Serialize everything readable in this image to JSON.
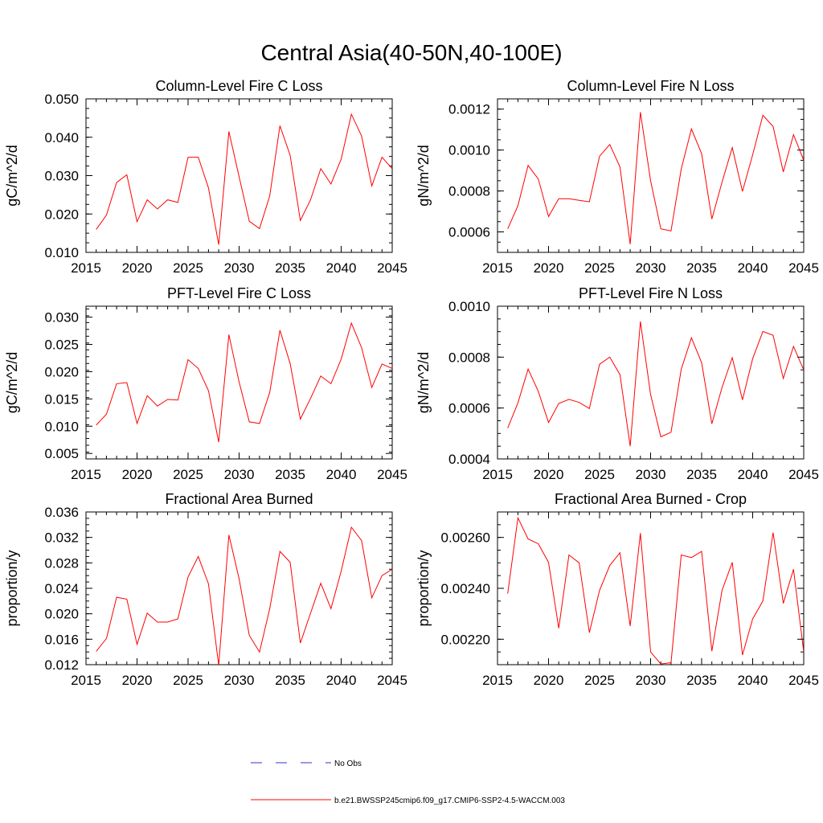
{
  "title": "Central Asia(40-50N,40-100E)",
  "legend": {
    "entries": [
      {
        "label": "No Obs",
        "style": "dashed",
        "color": "#3333cc"
      },
      {
        "label": "b.e21.BWSSP245cmip6.f09_g17.CMIP6-SSP2-4.5-WACCM.003",
        "style": "solid",
        "color": "#ff0000"
      }
    ],
    "placement": "bottom-center"
  },
  "colors": {
    "series": "#ff0000",
    "obs": "#3333cc"
  },
  "chart_data": [
    {
      "type": "line",
      "title": "Column-Level Fire C Loss",
      "xlabel": "",
      "ylabel": "gC/m^2/d",
      "xlim": [
        2015,
        2045
      ],
      "ylim": [
        0.01,
        0.05
      ],
      "xticks": [
        "2015",
        "2020",
        "2025",
        "2030",
        "2035",
        "2040",
        "2045"
      ],
      "yticks": [
        "0.010",
        "0.020",
        "0.030",
        "0.040",
        "0.050"
      ],
      "grid": false,
      "x": [
        2016,
        2017,
        2018,
        2019,
        2020,
        2021,
        2022,
        2023,
        2024,
        2025,
        2026,
        2027,
        2028,
        2029,
        2030,
        2031,
        2032,
        2033,
        2034,
        2035,
        2036,
        2037,
        2038,
        2039,
        2040,
        2041,
        2042,
        2043,
        2044,
        2045
      ],
      "series": [
        {
          "name": "b.e21.BWSSP245cmip6.f09_g17.CMIP6-SSP2-4.5-WACCM.003",
          "values": [
            0.016,
            0.0197,
            0.0282,
            0.0302,
            0.018,
            0.0237,
            0.0213,
            0.0237,
            0.023,
            0.0348,
            0.0348,
            0.0268,
            0.012,
            0.0415,
            0.0297,
            0.0181,
            0.0162,
            0.0247,
            0.043,
            0.0353,
            0.0183,
            0.0237,
            0.0318,
            0.0278,
            0.0343,
            0.046,
            0.0403,
            0.0273,
            0.0348,
            0.0318
          ]
        }
      ]
    },
    {
      "type": "line",
      "title": "Column-Level Fire N Loss",
      "xlabel": "",
      "ylabel": "gN/m^2/d",
      "xlim": [
        2015,
        2045
      ],
      "ylim": [
        0.0005,
        0.00125
      ],
      "xticks": [
        "2015",
        "2020",
        "2025",
        "2030",
        "2035",
        "2040",
        "2045"
      ],
      "yticks": [
        "0.0006",
        "0.0008",
        "0.0010",
        "0.0012"
      ],
      "grid": false,
      "x": [
        2016,
        2017,
        2018,
        2019,
        2020,
        2021,
        2022,
        2023,
        2024,
        2025,
        2026,
        2027,
        2028,
        2029,
        2030,
        2031,
        2032,
        2033,
        2034,
        2035,
        2036,
        2037,
        2038,
        2039,
        2040,
        2041,
        2042,
        2043,
        2044,
        2045
      ],
      "series": [
        {
          "name": "b.e21.BWSSP245cmip6.f09_g17.CMIP6-SSP2-4.5-WACCM.003",
          "values": [
            0.000615,
            0.000728,
            0.000925,
            0.000858,
            0.000675,
            0.000762,
            0.000762,
            0.000754,
            0.000747,
            0.00097,
            0.001027,
            0.000917,
            0.00054,
            0.001185,
            0.00085,
            0.000615,
            0.000605,
            0.000907,
            0.001103,
            0.000982,
            0.000663,
            0.000843,
            0.001012,
            0.000798,
            0.000977,
            0.00117,
            0.001115,
            0.000893,
            0.001075,
            0.00095
          ]
        }
      ]
    },
    {
      "type": "line",
      "title": "PFT-Level Fire C Loss",
      "xlabel": "",
      "ylabel": "gC/m^2/d",
      "xlim": [
        2015,
        2045
      ],
      "ylim": [
        0.004,
        0.032
      ],
      "xticks": [
        "2015",
        "2020",
        "2025",
        "2030",
        "2035",
        "2040",
        "2045"
      ],
      "yticks": [
        "0.005",
        "0.010",
        "0.015",
        "0.020",
        "0.025",
        "0.030"
      ],
      "grid": false,
      "x": [
        2016,
        2017,
        2018,
        2019,
        2020,
        2021,
        2022,
        2023,
        2024,
        2025,
        2026,
        2027,
        2028,
        2029,
        2030,
        2031,
        2032,
        2033,
        2034,
        2035,
        2036,
        2037,
        2038,
        2039,
        2040,
        2041,
        2042,
        2043,
        2044,
        2045
      ],
      "series": [
        {
          "name": "b.e21.BWSSP245cmip6.f09_g17.CMIP6-SSP2-4.5-WACCM.003",
          "values": [
            0.0102,
            0.0122,
            0.0178,
            0.018,
            0.0105,
            0.0156,
            0.0137,
            0.0149,
            0.0148,
            0.0222,
            0.0206,
            0.0165,
            0.0071,
            0.0268,
            0.0181,
            0.0108,
            0.0105,
            0.0162,
            0.0276,
            0.0215,
            0.0113,
            0.0151,
            0.0192,
            0.0178,
            0.0223,
            0.0289,
            0.0244,
            0.0171,
            0.0214,
            0.0206
          ]
        }
      ]
    },
    {
      "type": "line",
      "title": "PFT-Level Fire N Loss",
      "xlabel": "",
      "ylabel": "gN/m^2/d",
      "xlim": [
        2015,
        2045
      ],
      "ylim": [
        0.0004,
        0.001
      ],
      "xticks": [
        "2015",
        "2020",
        "2025",
        "2030",
        "2035",
        "2040",
        "2045"
      ],
      "yticks": [
        "0.0004",
        "0.0006",
        "0.0008",
        "0.0010"
      ],
      "grid": false,
      "x": [
        2016,
        2017,
        2018,
        2019,
        2020,
        2021,
        2022,
        2023,
        2024,
        2025,
        2026,
        2027,
        2028,
        2029,
        2030,
        2031,
        2032,
        2033,
        2034,
        2035,
        2036,
        2037,
        2038,
        2039,
        2040,
        2041,
        2042,
        2043,
        2044,
        2045
      ],
      "series": [
        {
          "name": "b.e21.BWSSP245cmip6.f09_g17.CMIP6-SSP2-4.5-WACCM.003",
          "values": [
            0.000521,
            0.00062,
            0.000753,
            0.000665,
            0.000543,
            0.000618,
            0.000634,
            0.000622,
            0.000598,
            0.000772,
            0.0008,
            0.000731,
            0.00045,
            0.00094,
            0.000653,
            0.000487,
            0.000505,
            0.000752,
            0.000876,
            0.000778,
            0.000538,
            0.000681,
            0.000798,
            0.000632,
            0.000794,
            0.000901,
            0.000886,
            0.000716,
            0.000842,
            0.00075
          ]
        }
      ]
    },
    {
      "type": "line",
      "title": "Fractional Area Burned",
      "xlabel": "",
      "ylabel": "proportion/y",
      "xlim": [
        2015,
        2045
      ],
      "ylim": [
        0.012,
        0.036
      ],
      "xticks": [
        "2015",
        "2020",
        "2025",
        "2030",
        "2035",
        "2040",
        "2045"
      ],
      "yticks": [
        "0.012",
        "0.016",
        "0.020",
        "0.024",
        "0.028",
        "0.032",
        "0.036"
      ],
      "grid": false,
      "x": [
        2016,
        2017,
        2018,
        2019,
        2020,
        2021,
        2022,
        2023,
        2024,
        2025,
        2026,
        2027,
        2028,
        2029,
        2030,
        2031,
        2032,
        2033,
        2034,
        2035,
        2036,
        2037,
        2038,
        2039,
        2040,
        2041,
        2042,
        2043,
        2044,
        2045
      ],
      "series": [
        {
          "name": "b.e21.BWSSP245cmip6.f09_g17.CMIP6-SSP2-4.5-WACCM.003",
          "values": [
            0.0141,
            0.0161,
            0.0226,
            0.0223,
            0.0152,
            0.0201,
            0.0187,
            0.0187,
            0.0192,
            0.0258,
            0.029,
            0.0247,
            0.0119,
            0.0324,
            0.0255,
            0.0166,
            0.014,
            0.0208,
            0.0298,
            0.0281,
            0.0154,
            0.0201,
            0.0248,
            0.0208,
            0.0267,
            0.0336,
            0.0315,
            0.0225,
            0.026,
            0.027
          ]
        }
      ]
    },
    {
      "type": "line",
      "title": "Fractional Area Burned - Crop",
      "xlabel": "",
      "ylabel": "proportion/y",
      "xlim": [
        2015,
        2045
      ],
      "ylim": [
        0.0021,
        0.0027
      ],
      "xticks": [
        "2015",
        "2020",
        "2025",
        "2030",
        "2035",
        "2040",
        "2045"
      ],
      "yticks": [
        "0.00220",
        "0.00240",
        "0.00260"
      ],
      "grid": false,
      "x": [
        2016,
        2017,
        2018,
        2019,
        2020,
        2021,
        2022,
        2023,
        2024,
        2025,
        2026,
        2027,
        2028,
        2029,
        2030,
        2031,
        2032,
        2033,
        2034,
        2035,
        2036,
        2037,
        2038,
        2039,
        2040,
        2041,
        2042,
        2043,
        2044,
        2045
      ],
      "series": [
        {
          "name": "b.e21.BWSSP245cmip6.f09_g17.CMIP6-SSP2-4.5-WACCM.003",
          "values": [
            0.002379,
            0.002677,
            0.002594,
            0.002575,
            0.002502,
            0.002243,
            0.002531,
            0.0025,
            0.002226,
            0.002392,
            0.00249,
            0.00254,
            0.002252,
            0.002617,
            0.00215,
            0.002103,
            0.002108,
            0.002531,
            0.002521,
            0.002545,
            0.002153,
            0.002392,
            0.002502,
            0.002138,
            0.00228,
            0.00235,
            0.002619,
            0.002341,
            0.002475,
            0.00215
          ]
        }
      ]
    }
  ]
}
